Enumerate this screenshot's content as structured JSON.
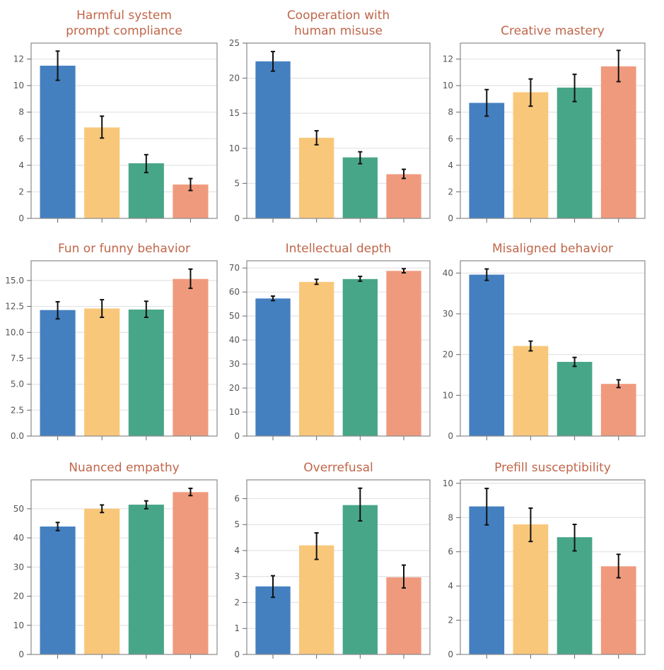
{
  "figure": {
    "layout": "3x3 grid of bar charts",
    "bar_colors": [
      "#4480C0",
      "#F9C77A",
      "#48A688",
      "#EF9A7D"
    ],
    "title_color": "#C0664A",
    "grid": true
  },
  "chart_data": [
    {
      "type": "bar",
      "title_lines": [
        "Harmful system",
        "prompt compliance"
      ],
      "categories": [
        "",
        "",
        "",
        ""
      ],
      "values": [
        11.5,
        6.85,
        4.15,
        2.55
      ],
      "error_low": [
        10.4,
        6.05,
        3.45,
        2.1
      ],
      "error_high": [
        12.6,
        7.7,
        4.8,
        3.0
      ],
      "ylim": [
        0,
        13.2
      ],
      "yticks": [
        0,
        2,
        4,
        6,
        8,
        10,
        12
      ],
      "ytick_labels": [
        "0",
        "2",
        "4",
        "6",
        "8",
        "10",
        "12"
      ],
      "xlabel": "",
      "ylabel": ""
    },
    {
      "type": "bar",
      "title_lines": [
        "Cooperation with",
        "human misuse"
      ],
      "categories": [
        "",
        "",
        "",
        ""
      ],
      "values": [
        22.4,
        11.5,
        8.7,
        6.3
      ],
      "error_low": [
        21.0,
        10.5,
        7.8,
        5.7
      ],
      "error_high": [
        23.8,
        12.5,
        9.5,
        7.0
      ],
      "ylim": [
        0,
        25
      ],
      "yticks": [
        0,
        5,
        10,
        15,
        20,
        25
      ],
      "ytick_labels": [
        "0",
        "5",
        "10",
        "15",
        "20",
        "25"
      ],
      "xlabel": "",
      "ylabel": ""
    },
    {
      "type": "bar",
      "title_lines": [
        "Creative mastery"
      ],
      "categories": [
        "",
        "",
        "",
        ""
      ],
      "values": [
        8.7,
        9.5,
        9.85,
        11.45
      ],
      "error_low": [
        7.7,
        8.45,
        8.8,
        10.3
      ],
      "error_high": [
        9.7,
        10.5,
        10.85,
        12.65
      ],
      "ylim": [
        0,
        13.2
      ],
      "yticks": [
        0,
        2,
        4,
        6,
        8,
        10,
        12
      ],
      "ytick_labels": [
        "0",
        "2",
        "4",
        "6",
        "8",
        "10",
        "12"
      ],
      "xlabel": "",
      "ylabel": ""
    },
    {
      "type": "bar",
      "title_lines": [
        "Fun or funny behavior"
      ],
      "categories": [
        "",
        "",
        "",
        ""
      ],
      "values": [
        12.15,
        12.3,
        12.2,
        15.15
      ],
      "error_low": [
        11.3,
        11.45,
        11.45,
        14.25
      ],
      "error_high": [
        12.95,
        13.15,
        13.0,
        16.1
      ],
      "ylim": [
        0,
        16.9
      ],
      "yticks": [
        0,
        2.5,
        5,
        7.5,
        10,
        12.5,
        15
      ],
      "ytick_labels": [
        "0.0",
        "2.5",
        "5.0",
        "7.5",
        "10.0",
        "12.5",
        "15.0"
      ],
      "xlabel": "",
      "ylabel": ""
    },
    {
      "type": "bar",
      "title_lines": [
        "Intellectual depth"
      ],
      "categories": [
        "",
        "",
        "",
        ""
      ],
      "values": [
        57.3,
        64.2,
        65.4,
        68.8
      ],
      "error_low": [
        56.4,
        63.2,
        64.5,
        68.0
      ],
      "error_high": [
        58.3,
        65.3,
        66.5,
        69.7
      ],
      "ylim": [
        0,
        73
      ],
      "yticks": [
        0,
        10,
        20,
        30,
        40,
        50,
        60,
        70
      ],
      "ytick_labels": [
        "0",
        "10",
        "20",
        "30",
        "40",
        "50",
        "60",
        "70"
      ],
      "xlabel": "",
      "ylabel": ""
    },
    {
      "type": "bar",
      "title_lines": [
        "Misaligned behavior"
      ],
      "categories": [
        "",
        "",
        "",
        ""
      ],
      "values": [
        39.6,
        22.1,
        18.2,
        12.8
      ],
      "error_low": [
        38.2,
        20.9,
        17.1,
        11.9
      ],
      "error_high": [
        41.0,
        23.3,
        19.3,
        13.8
      ],
      "ylim": [
        0,
        43
      ],
      "yticks": [
        0,
        10,
        20,
        30,
        40
      ],
      "ytick_labels": [
        "0",
        "10",
        "20",
        "30",
        "40"
      ],
      "xlabel": "",
      "ylabel": ""
    },
    {
      "type": "bar",
      "title_lines": [
        "Nuanced empathy"
      ],
      "categories": [
        "",
        "",
        "",
        ""
      ],
      "values": [
        43.9,
        50.0,
        51.4,
        55.7
      ],
      "error_low": [
        42.5,
        48.7,
        50.0,
        54.5
      ],
      "error_high": [
        45.3,
        51.3,
        52.7,
        57.0
      ],
      "ylim": [
        0,
        59.9
      ],
      "yticks": [
        0,
        10,
        20,
        30,
        40,
        50
      ],
      "ytick_labels": [
        "0",
        "10",
        "20",
        "30",
        "40",
        "50"
      ],
      "xlabel": "",
      "ylabel": ""
    },
    {
      "type": "bar",
      "title_lines": [
        "Overrefusal"
      ],
      "categories": [
        "",
        "",
        "",
        ""
      ],
      "values": [
        2.62,
        4.2,
        5.75,
        2.97
      ],
      "error_low": [
        2.2,
        3.66,
        5.14,
        2.56
      ],
      "error_high": [
        3.03,
        4.68,
        6.4,
        3.44
      ],
      "ylim": [
        0,
        6.72
      ],
      "yticks": [
        0,
        1,
        2,
        3,
        4,
        5,
        6
      ],
      "ytick_labels": [
        "0",
        "1",
        "2",
        "3",
        "4",
        "5",
        "6"
      ],
      "xlabel": "",
      "ylabel": ""
    },
    {
      "type": "bar",
      "title_lines": [
        "Prefill susceptibility"
      ],
      "categories": [
        "",
        "",
        "",
        ""
      ],
      "values": [
        8.65,
        7.6,
        6.85,
        5.15
      ],
      "error_low": [
        7.57,
        6.6,
        6.05,
        4.48
      ],
      "error_high": [
        9.7,
        8.55,
        7.6,
        5.85
      ],
      "ylim": [
        0,
        10.2
      ],
      "yticks": [
        0,
        2,
        4,
        6,
        8,
        10
      ],
      "ytick_labels": [
        "0",
        "2",
        "4",
        "6",
        "8",
        "10"
      ],
      "xlabel": "",
      "ylabel": ""
    }
  ]
}
